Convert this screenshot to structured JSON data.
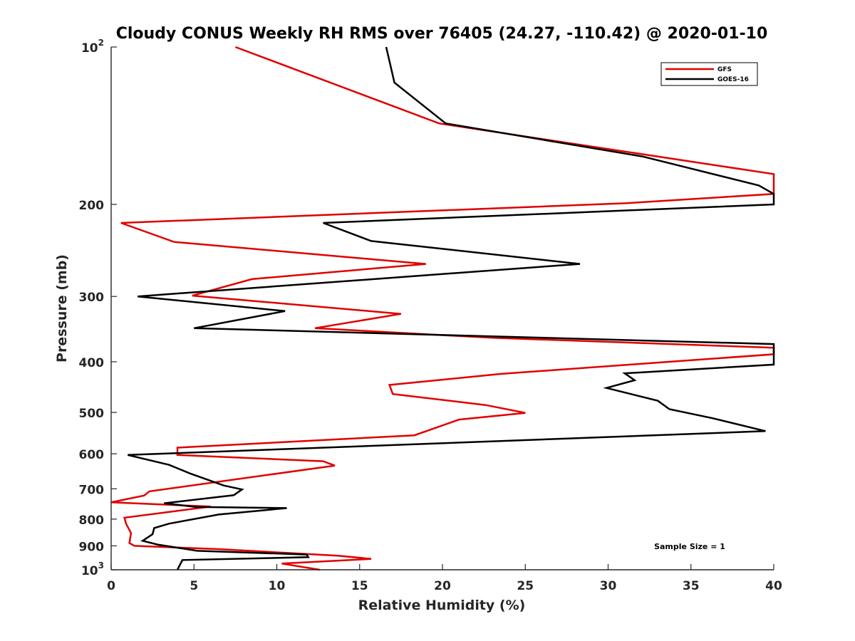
{
  "chart_data": {
    "type": "line",
    "title": "Cloudy CONUS Weekly RH RMS over 76405 (24.27, -110.42) @ 2020-01-10",
    "xlabel": "Relative Humidity (%)",
    "ylabel": "Pressure (mb)",
    "xlim": [
      0,
      40
    ],
    "ylim": [
      100,
      1000
    ],
    "yscale": "log",
    "y_reversed": true,
    "x_ticks": [
      "0",
      "5",
      "10",
      "15",
      "20",
      "25",
      "30",
      "35",
      "40"
    ],
    "x_tick_values": [
      0,
      5,
      10,
      15,
      20,
      25,
      30,
      35,
      40
    ],
    "y_ticks": [
      {
        "value": 100,
        "base": "10",
        "exp": "2"
      },
      {
        "value": 200,
        "label": "200"
      },
      {
        "value": 300,
        "label": "300"
      },
      {
        "value": 400,
        "label": "400"
      },
      {
        "value": 500,
        "label": "500"
      },
      {
        "value": 600,
        "label": "600"
      },
      {
        "value": 700,
        "label": "700"
      },
      {
        "value": 800,
        "label": "800"
      },
      {
        "value": 900,
        "label": "900"
      },
      {
        "value": 1000,
        "base": "10",
        "exp": "3"
      }
    ],
    "legend_position": "top-right",
    "annotation": "Sample Size = 1",
    "series": [
      {
        "name": "GFS",
        "color": "#e00000",
        "points": [
          [
            7.5,
            100
          ],
          [
            19.8,
            140
          ],
          [
            40,
            175
          ],
          [
            40,
            191
          ],
          [
            31,
            199
          ],
          [
            0.6,
            217
          ],
          [
            3.8,
            236
          ],
          [
            19,
            260
          ],
          [
            8.5,
            278
          ],
          [
            4.9,
            299
          ],
          [
            17.5,
            324
          ],
          [
            12.3,
            345
          ],
          [
            23,
            360
          ],
          [
            40,
            376
          ],
          [
            40,
            387
          ],
          [
            23.5,
            422
          ],
          [
            16.8,
            443
          ],
          [
            17,
            461
          ],
          [
            22.6,
            484
          ],
          [
            25,
            501
          ],
          [
            21,
            516
          ],
          [
            18.3,
            553
          ],
          [
            4,
            584
          ],
          [
            4,
            603
          ],
          [
            12.8,
            620
          ],
          [
            13.5,
            632
          ],
          [
            2.3,
            708
          ],
          [
            2,
            721
          ],
          [
            0,
            743
          ],
          [
            6,
            757
          ],
          [
            0.8,
            795
          ],
          [
            0.9,
            816
          ],
          [
            1.2,
            851
          ],
          [
            1.1,
            889
          ],
          [
            1.4,
            900
          ],
          [
            6.5,
            913
          ],
          [
            13.7,
            940
          ],
          [
            15.7,
            953
          ],
          [
            10.3,
            973
          ],
          [
            12.6,
            1000
          ]
        ]
      },
      {
        "name": "GOES-16",
        "color": "#000000",
        "points": [
          [
            16.6,
            100
          ],
          [
            17.1,
            117
          ],
          [
            20.2,
            140
          ],
          [
            32.1,
            162
          ],
          [
            39.1,
            184
          ],
          [
            40,
            191
          ],
          [
            40,
            200
          ],
          [
            12.8,
            217
          ],
          [
            15.7,
            235
          ],
          [
            28.3,
            260
          ],
          [
            1.6,
            300
          ],
          [
            10.5,
            320
          ],
          [
            5,
            345
          ],
          [
            40,
            370
          ],
          [
            40,
            405
          ],
          [
            31,
            421
          ],
          [
            31.6,
            434
          ],
          [
            29.9,
            449
          ],
          [
            33,
            475
          ],
          [
            33.7,
            493
          ],
          [
            36.3,
            513
          ],
          [
            39.5,
            543
          ],
          [
            1,
            603
          ],
          [
            3.5,
            630
          ],
          [
            4.8,
            655
          ],
          [
            6.8,
            690
          ],
          [
            7.9,
            702
          ],
          [
            7.4,
            720
          ],
          [
            3.2,
            746
          ],
          [
            5.1,
            758
          ],
          [
            10.6,
            762
          ],
          [
            6.5,
            784
          ],
          [
            3.5,
            816
          ],
          [
            2.6,
            832
          ],
          [
            2.5,
            855
          ],
          [
            1.9,
            880
          ],
          [
            2.8,
            895
          ],
          [
            5.2,
            920
          ],
          [
            11.8,
            935
          ],
          [
            11.9,
            946
          ],
          [
            4.3,
            958
          ],
          [
            4,
            1000
          ]
        ]
      }
    ]
  }
}
